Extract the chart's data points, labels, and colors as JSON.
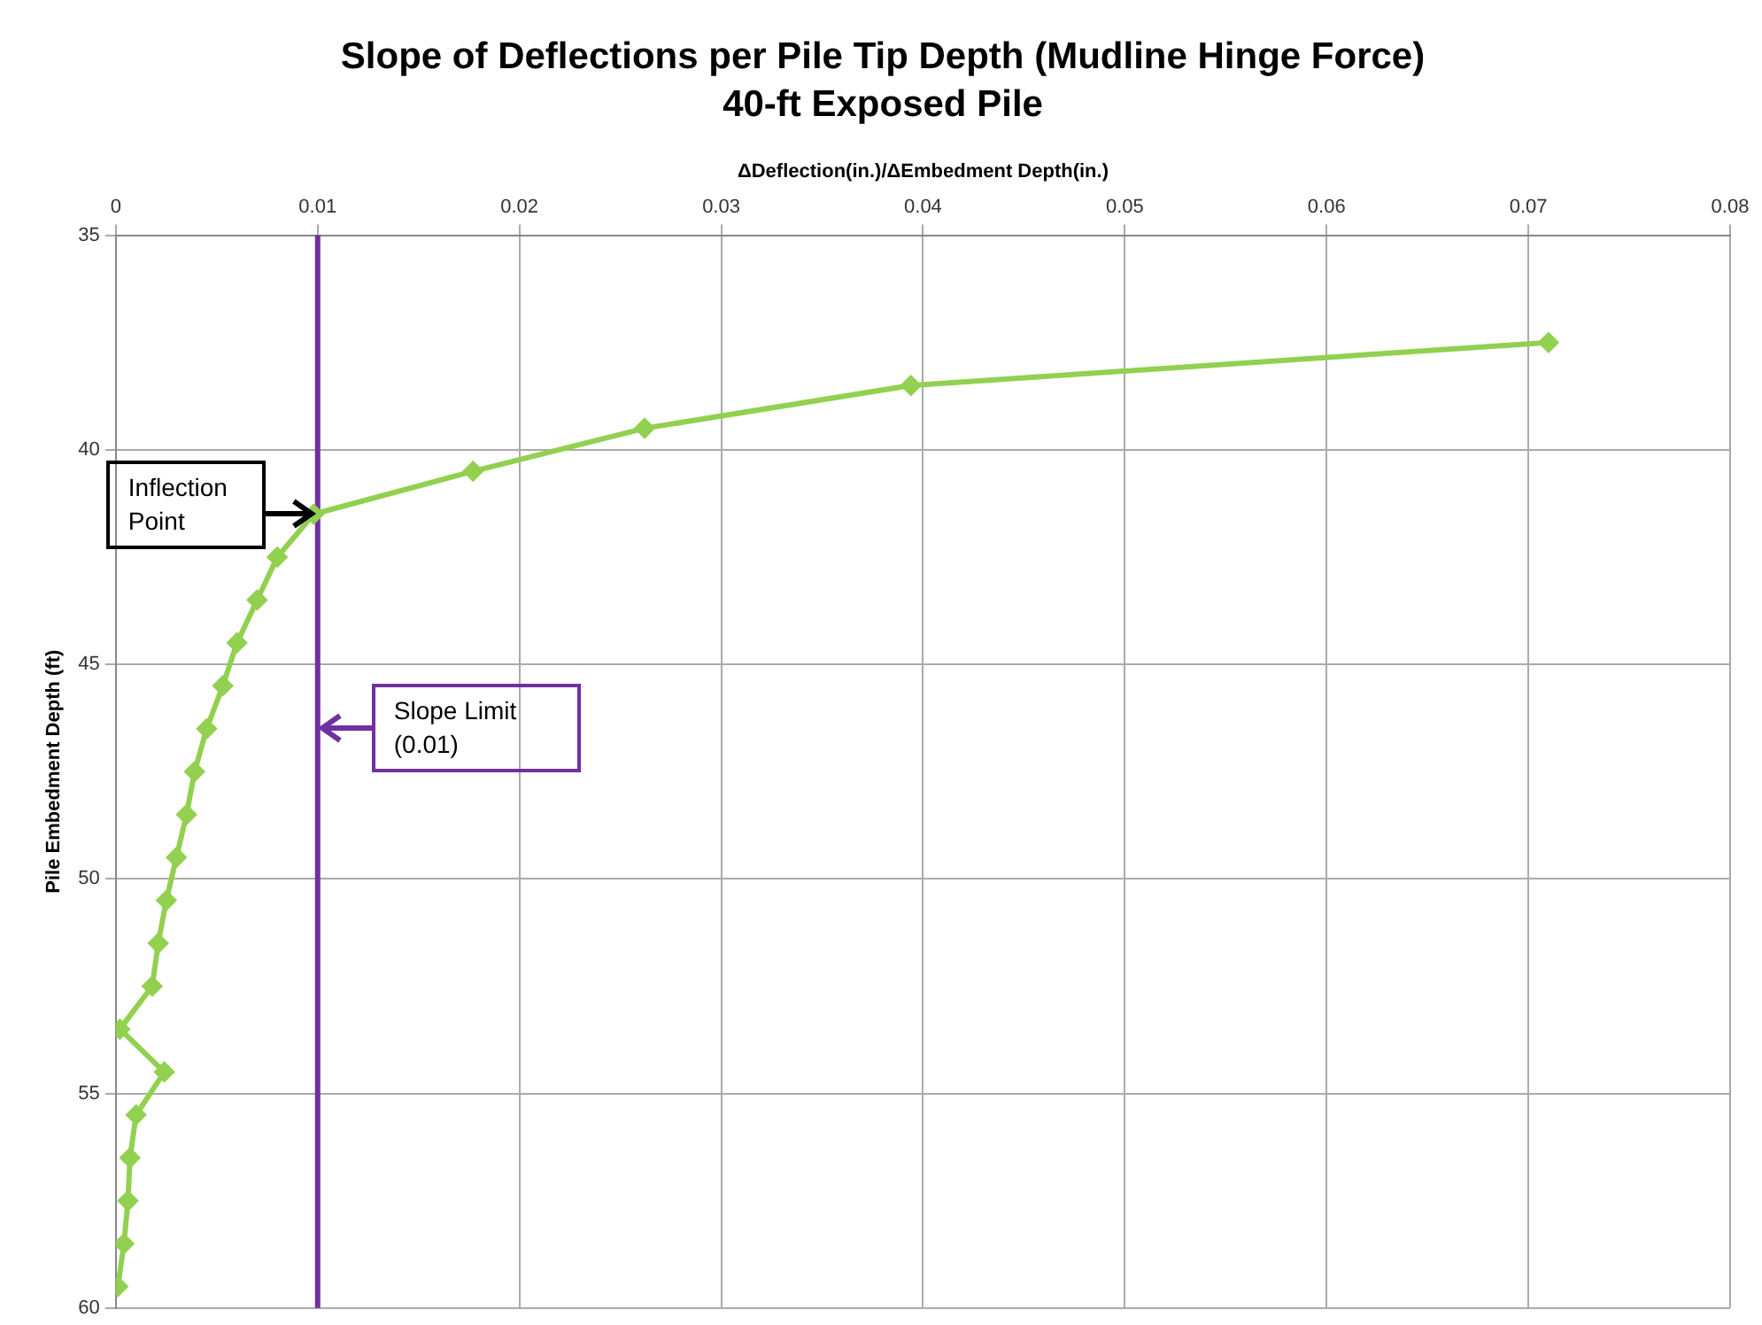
{
  "chart_data": {
    "type": "line",
    "title": "Slope of Deflections per Pile Tip Depth (Mudline Hinge Force)",
    "subtitle": "40-ft Exposed Pile",
    "xlabel": "ΔDeflection(in.)/ΔEmbedment Depth(in.)",
    "ylabel": "Pile Embedment Depth (ft)",
    "series": [
      {
        "color": "#92d050",
        "x": [
          0.071,
          0.0394,
          0.0262,
          0.0177,
          0.0098,
          0.008,
          0.007,
          0.006,
          0.0053,
          0.0045,
          0.0039,
          0.0035,
          0.003,
          0.0025,
          0.0021,
          0.0018,
          0.0002,
          0.0024,
          0.001,
          0.0007,
          0.0006,
          0.0004,
          0.0001
        ],
        "values": [
          37.5,
          38.5,
          39.5,
          40.5,
          41.5,
          42.5,
          43.5,
          44.5,
          45.5,
          46.5,
          47.5,
          48.5,
          49.5,
          50.5,
          51.5,
          52.5,
          53.5,
          54.5,
          55.5,
          56.5,
          57.5,
          58.5,
          59.5
        ]
      }
    ],
    "xlim": [
      0,
      0.08
    ],
    "xticks": [
      0,
      0.01,
      0.02,
      0.03,
      0.04,
      0.05,
      0.06,
      0.07,
      0.08
    ],
    "ylim": [
      60,
      35
    ],
    "yticks": [
      35,
      40,
      45,
      50,
      55,
      60
    ],
    "ref_lines": [
      {
        "axis": "x",
        "value": 0.01,
        "label": "Slope Limit (0.01)",
        "color": "#7030a0"
      }
    ],
    "annotations": [
      "Inflection Point"
    ],
    "grid": true,
    "legend": false,
    "marker": "diamond",
    "line_style": "solid"
  }
}
